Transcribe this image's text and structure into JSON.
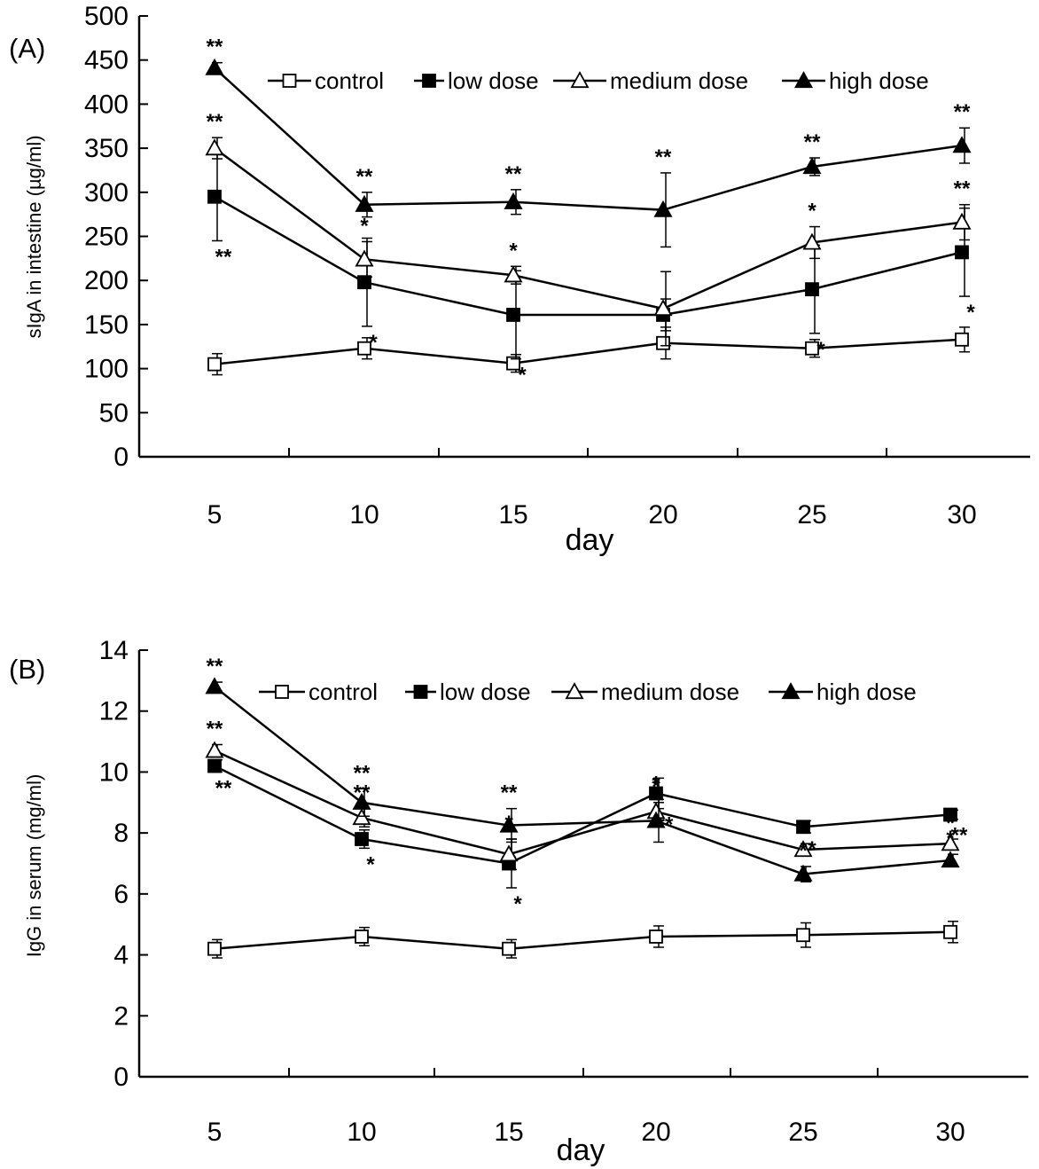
{
  "chart_data": [
    {
      "type": "line",
      "panel_label": "(A)",
      "xlabel": "day",
      "ylabel": "sIgA in intestine (µg/ml)",
      "categories": [
        "5",
        "10",
        "15",
        "20",
        "25",
        "30"
      ],
      "ylim": [
        0,
        500
      ],
      "yticks": [
        "0",
        "50",
        "100",
        "150",
        "200",
        "250",
        "300",
        "350",
        "400",
        "450",
        "500"
      ],
      "grid": false,
      "legend_position": "top",
      "series": [
        {
          "name": "control",
          "marker": "open-square",
          "values": [
            105,
            123,
            106,
            129,
            123,
            133
          ],
          "err": [
            12,
            12,
            10,
            18,
            10,
            14
          ],
          "stars": [
            "",
            "",
            "",
            "",
            "",
            ""
          ]
        },
        {
          "name": "low dose",
          "marker": "filled-square",
          "values": [
            295,
            198,
            161,
            161,
            190,
            232
          ],
          "err": [
            50,
            50,
            50,
            18,
            50,
            50
          ],
          "stars": [
            "**",
            "*",
            "*",
            "",
            "*",
            "*"
          ]
        },
        {
          "name": "medium dose",
          "marker": "open-triangle",
          "values": [
            350,
            224,
            206,
            168,
            243,
            266
          ],
          "err": [
            12,
            20,
            10,
            42,
            18,
            20
          ],
          "stars": [
            "**",
            "*",
            "*",
            "",
            "*",
            "**"
          ]
        },
        {
          "name": "high dose",
          "marker": "filled-triangle",
          "values": [
            441,
            286,
            289,
            280,
            329,
            353
          ],
          "err": [
            6,
            14,
            14,
            42,
            10,
            20
          ],
          "stars": [
            "**",
            "**",
            "**",
            "**",
            "**",
            "**"
          ]
        }
      ]
    },
    {
      "type": "line",
      "panel_label": "(B)",
      "xlabel": "day",
      "ylabel": "IgG in serum (mg/ml)",
      "categories": [
        "5",
        "10",
        "15",
        "20",
        "25",
        "30"
      ],
      "ylim": [
        0,
        14
      ],
      "yticks": [
        "0",
        "2",
        "4",
        "6",
        "8",
        "10",
        "12",
        "14"
      ],
      "grid": false,
      "legend_position": "top",
      "series": [
        {
          "name": "control",
          "marker": "open-square",
          "values": [
            4.2,
            4.6,
            4.2,
            4.6,
            4.65,
            4.75
          ],
          "err": [
            0.3,
            0.3,
            0.3,
            0.35,
            0.4,
            0.35
          ],
          "stars": [
            "",
            "",
            "",
            "",
            "",
            ""
          ]
        },
        {
          "name": "low dose",
          "marker": "filled-square",
          "values": [
            10.2,
            7.8,
            7.0,
            9.3,
            8.2,
            8.6
          ],
          "err": [
            0.2,
            0.3,
            0.8,
            0.5,
            0.2,
            0.15
          ],
          "stars": [
            "**",
            "*",
            "*",
            "**",
            "*",
            "**"
          ]
        },
        {
          "name": "medium dose",
          "marker": "open-triangle",
          "values": [
            10.7,
            8.5,
            7.3,
            8.7,
            7.45,
            7.65
          ],
          "err": [
            0.2,
            0.3,
            0.5,
            0.3,
            0.2,
            0.15
          ],
          "stars": [
            "**",
            "**",
            "*",
            "*",
            "*",
            "*"
          ]
        },
        {
          "name": "high dose",
          "marker": "filled-triangle",
          "values": [
            12.8,
            9.0,
            8.25,
            8.4,
            6.65,
            7.1
          ],
          "err": [
            0.15,
            0.45,
            0.55,
            0.7,
            0.25,
            0.2
          ],
          "stars": [
            "**",
            "**",
            "**",
            "*",
            "*",
            "*"
          ]
        }
      ]
    }
  ]
}
